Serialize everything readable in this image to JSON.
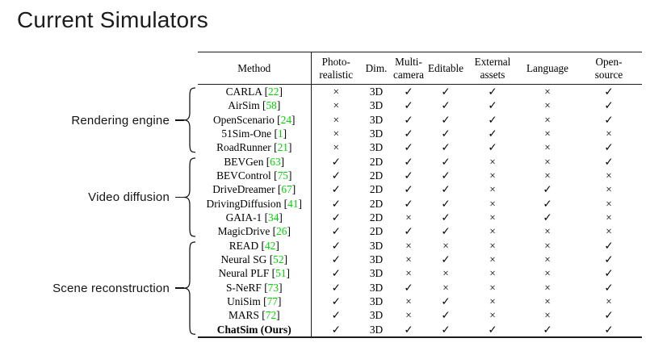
{
  "title": "Current Simulators",
  "colors": {
    "citation_green": "#00d400"
  },
  "table": {
    "headers": [
      {
        "key": "method",
        "lines": [
          "Method"
        ]
      },
      {
        "key": "photo-realistic",
        "lines": [
          "Photo-",
          "realistic"
        ]
      },
      {
        "key": "dim",
        "lines": [
          "Dim."
        ]
      },
      {
        "key": "multi-camera",
        "lines": [
          "Multi-",
          "camera"
        ]
      },
      {
        "key": "editable",
        "lines": [
          "Editable"
        ]
      },
      {
        "key": "external-assets",
        "lines": [
          "External",
          "assets"
        ]
      },
      {
        "key": "language",
        "lines": [
          "Language"
        ]
      },
      {
        "key": "open-source",
        "lines": [
          "Open-",
          "source"
        ]
      }
    ],
    "groups": [
      {
        "label": "Rendering engine",
        "rows": [
          {
            "method": "CARLA",
            "citation": "22",
            "bold": false,
            "cells": [
              "×",
              "3D",
              "✓",
              "✓",
              "✓",
              "×",
              "✓"
            ]
          },
          {
            "method": "AirSim",
            "citation": "58",
            "bold": false,
            "cells": [
              "×",
              "3D",
              "✓",
              "✓",
              "✓",
              "×",
              "✓"
            ]
          },
          {
            "method": "OpenScenario",
            "citation": "24",
            "bold": false,
            "cells": [
              "×",
              "3D",
              "✓",
              "✓",
              "✓",
              "×",
              "✓"
            ]
          },
          {
            "method": "51Sim-One",
            "citation": "1",
            "bold": false,
            "cells": [
              "×",
              "3D",
              "✓",
              "✓",
              "✓",
              "×",
              "×"
            ]
          },
          {
            "method": "RoadRunner",
            "citation": "21",
            "bold": false,
            "cells": [
              "×",
              "3D",
              "✓",
              "✓",
              "✓",
              "×",
              "✓"
            ]
          }
        ]
      },
      {
        "label": "Video diffusion",
        "rows": [
          {
            "method": "BEVGen",
            "citation": "63",
            "bold": false,
            "cells": [
              "✓",
              "2D",
              "✓",
              "✓",
              "×",
              "×",
              "✓"
            ]
          },
          {
            "method": "BEVControl",
            "citation": "75",
            "bold": false,
            "cells": [
              "✓",
              "2D",
              "✓",
              "✓",
              "×",
              "×",
              "×"
            ]
          },
          {
            "method": "DriveDreamer",
            "citation": "67",
            "bold": false,
            "cells": [
              "✓",
              "2D",
              "✓",
              "✓",
              "×",
              "✓",
              "×"
            ]
          },
          {
            "method": "DrivingDiffusion",
            "citation": "41",
            "bold": false,
            "cells": [
              "✓",
              "2D",
              "✓",
              "✓",
              "×",
              "✓",
              "×"
            ]
          },
          {
            "method": "GAIA-1",
            "citation": "34",
            "bold": false,
            "cells": [
              "✓",
              "2D",
              "×",
              "✓",
              "×",
              "✓",
              "×"
            ]
          },
          {
            "method": "MagicDrive",
            "citation": "26",
            "bold": false,
            "cells": [
              "✓",
              "2D",
              "✓",
              "✓",
              "×",
              "×",
              "×"
            ]
          }
        ]
      },
      {
        "label": "Scene reconstruction",
        "rows": [
          {
            "method": "READ",
            "citation": "42",
            "bold": false,
            "cells": [
              "✓",
              "3D",
              "×",
              "×",
              "×",
              "×",
              "✓"
            ]
          },
          {
            "method": "Neural SG",
            "citation": "52",
            "bold": false,
            "cells": [
              "✓",
              "3D",
              "×",
              "✓",
              "×",
              "×",
              "✓"
            ]
          },
          {
            "method": "Neural PLF",
            "citation": "51",
            "bold": false,
            "cells": [
              "✓",
              "3D",
              "×",
              "×",
              "×",
              "×",
              "✓"
            ]
          },
          {
            "method": "S-NeRF",
            "citation": "73",
            "bold": false,
            "cells": [
              "✓",
              "3D",
              "✓",
              "×",
              "×",
              "×",
              "✓"
            ]
          },
          {
            "method": "UniSim",
            "citation": "77",
            "bold": false,
            "cells": [
              "✓",
              "3D",
              "×",
              "✓",
              "×",
              "×",
              "×"
            ]
          },
          {
            "method": "MARS",
            "citation": "72",
            "bold": false,
            "cells": [
              "✓",
              "3D",
              "×",
              "✓",
              "×",
              "×",
              "✓"
            ]
          },
          {
            "method": "ChatSim (Ours)",
            "citation": null,
            "bold": true,
            "cells": [
              "✓",
              "3D",
              "✓",
              "✓",
              "✓",
              "✓",
              "✓"
            ]
          }
        ]
      }
    ]
  }
}
